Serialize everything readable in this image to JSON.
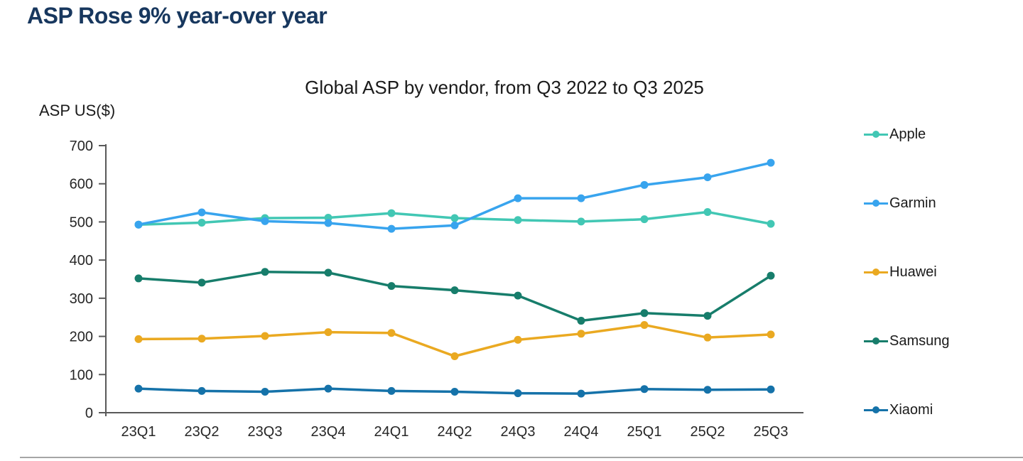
{
  "header": {
    "title": "ASP Rose 9% year-over year"
  },
  "chart": {
    "subtitle": "Global ASP by vendor, from Q3 2022 to Q3 2025",
    "y_axis_label": "ASP US($)"
  },
  "chart_data": {
    "type": "line",
    "title": "Global ASP by vendor, from Q3 2022 to Q3 2025",
    "xlabel": "",
    "ylabel": "ASP US($)",
    "categories": [
      "23Q1",
      "23Q2",
      "23Q3",
      "23Q4",
      "24Q1",
      "24Q2",
      "24Q3",
      "24Q4",
      "25Q1",
      "25Q2",
      "25Q3"
    ],
    "series": [
      {
        "name": "Apple",
        "color": "#42c7b4",
        "values": [
          493,
          498,
          510,
          511,
          523,
          510,
          505,
          501,
          507,
          526,
          495
        ]
      },
      {
        "name": "Garmin",
        "color": "#38a4ee",
        "values": [
          493,
          525,
          502,
          497,
          482,
          491,
          562,
          562,
          597,
          617,
          655
        ]
      },
      {
        "name": "Huawei",
        "color": "#eaa921",
        "values": [
          193,
          194,
          201,
          211,
          209,
          148,
          191,
          207,
          230,
          197,
          205
        ]
      },
      {
        "name": "Samsung",
        "color": "#177d6b",
        "values": [
          352,
          341,
          369,
          367,
          332,
          321,
          307,
          241,
          261,
          254,
          359
        ]
      },
      {
        "name": "Xiaomi",
        "color": "#1572a9",
        "values": [
          63,
          57,
          55,
          63,
          57,
          55,
          51,
          50,
          62,
          60,
          61
        ]
      }
    ],
    "ylim": [
      0,
      700
    ],
    "y_ticks": [
      0,
      100,
      200,
      300,
      400,
      500,
      600,
      700
    ],
    "grid": false,
    "legend_position": "right"
  },
  "colors": {
    "title_text": "#17375e",
    "axis": "#595959",
    "tick_text": "#262626",
    "divider": "#a6a6a6"
  }
}
